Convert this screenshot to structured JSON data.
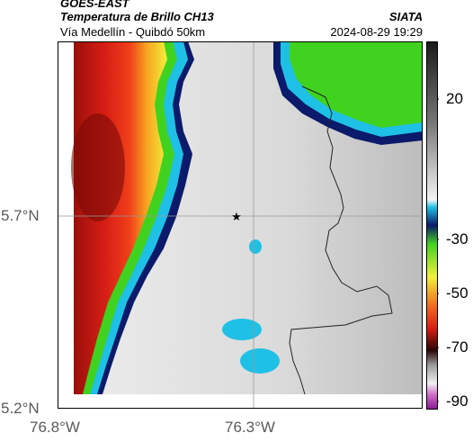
{
  "header": {
    "satellite": "GOES-EAST",
    "product": "Temperatura de Brillo CH13",
    "route": "Vía Medellín - Quibdó 50km",
    "agency": "SIATA",
    "timestamp": "2024-08-29 19:29"
  },
  "map": {
    "lat_ticks": [
      "5.7°N",
      "5.2°N"
    ],
    "lon_ticks": [
      "76.8°W",
      "76.3°W"
    ],
    "marker_icon": "star-icon"
  },
  "colorbar": {
    "ticks": [
      "20",
      "-30",
      "-50",
      "-70",
      "-90"
    ]
  },
  "colors": {
    "red": "#e8281c",
    "darkred": "#8a0d08",
    "green": "#3fdc1e",
    "yellow": "#f5f03a",
    "cyan": "#19c8e8",
    "navy": "#0a1a5a",
    "grey": "#d2d2d2"
  }
}
